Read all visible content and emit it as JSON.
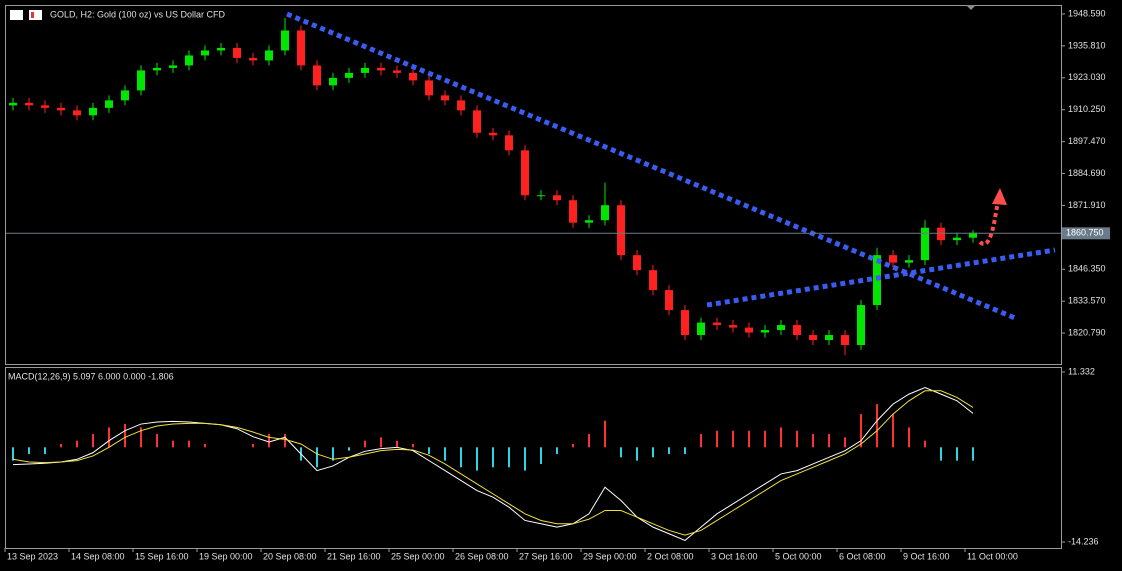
{
  "chart_data": [
    {
      "type": "candlestick",
      "title": "GOLD, H2:  Gold (100 oz) vs US Dollar CFD",
      "categories": [
        "13 Sep 2023",
        null,
        null,
        null,
        "14 Sep 08:00",
        null,
        null,
        null,
        "15 Sep 16:00",
        null,
        null,
        null,
        "19 Sep 00:00",
        null,
        null,
        null,
        "20 Sep 08:00",
        null,
        null,
        null,
        "21 Sep 16:00",
        null,
        null,
        null,
        "25 Sep 00:00",
        null,
        null,
        null,
        "26 Sep 08:00",
        null,
        null,
        null,
        "27 Sep 16:00",
        null,
        null,
        null,
        "29 Sep 00:00",
        null,
        null,
        null,
        "2 Oct 08:00",
        null,
        null,
        null,
        "3 Oct 16:00",
        null,
        null,
        null,
        "5 Oct 00:00",
        null,
        null,
        null,
        "6 Oct 08:00",
        null,
        null,
        null,
        "9 Oct 16:00",
        null,
        null,
        null,
        "11 Oct 00:00"
      ],
      "open": [
        1912,
        1913,
        1912,
        1911,
        1910,
        1908,
        1911,
        1914,
        1918,
        1926,
        1927,
        1928,
        1932,
        1934,
        1935,
        1931,
        1930,
        1934,
        1942,
        1928,
        1920,
        1923,
        1925,
        1927,
        1926,
        1925,
        1922,
        1916,
        1914,
        1910,
        1901,
        1900,
        1894,
        1876,
        1876,
        1874,
        1865,
        1866,
        1872,
        1852,
        1846,
        1838,
        1830,
        1820,
        1825,
        1824,
        1823,
        1821,
        1822,
        1824,
        1820,
        1818,
        1820,
        1816,
        1832,
        1852,
        1849,
        1850,
        1863,
        1858,
        1859
      ],
      "high": [
        1915,
        1915,
        1914,
        1913,
        1912,
        1913,
        1916,
        1920,
        1928,
        1929,
        1930,
        1934,
        1936,
        1937,
        1937,
        1933,
        1936,
        1947,
        1944,
        1930,
        1925,
        1927,
        1929,
        1929,
        1928,
        1927,
        1924,
        1918,
        1916,
        1912,
        1903,
        1902,
        1896,
        1878,
        1878,
        1876,
        1868,
        1881,
        1874,
        1854,
        1848,
        1840,
        1832,
        1827,
        1827,
        1826,
        1825,
        1824,
        1826,
        1826,
        1822,
        1822,
        1822,
        1834,
        1855,
        1854,
        1852,
        1866,
        1865,
        1861,
        1862
      ],
      "low": [
        1910,
        1910,
        1909,
        1908,
        1906,
        1906,
        1909,
        1912,
        1916,
        1924,
        1925,
        1926,
        1930,
        1932,
        1929,
        1928,
        1928,
        1932,
        1926,
        1918,
        1918,
        1921,
        1923,
        1924,
        1923,
        1920,
        1914,
        1912,
        1908,
        1899,
        1898,
        1892,
        1874,
        1874,
        1872,
        1863,
        1863,
        1864,
        1850,
        1844,
        1836,
        1828,
        1818,
        1818,
        1822,
        1821,
        1819,
        1819,
        1820,
        1818,
        1816,
        1816,
        1812,
        1814,
        1830,
        1847,
        1847,
        1848,
        1856,
        1856,
        1857
      ],
      "close": [
        1913,
        1912,
        1911,
        1910,
        1908,
        1911,
        1914,
        1918,
        1926,
        1927,
        1928,
        1932,
        1934,
        1935,
        1931,
        1930,
        1934,
        1942,
        1928,
        1920,
        1923,
        1925,
        1927,
        1926,
        1925,
        1922,
        1916,
        1914,
        1910,
        1901,
        1900,
        1894,
        1876,
        1876,
        1874,
        1865,
        1866,
        1872,
        1852,
        1846,
        1838,
        1830,
        1820,
        1825,
        1824,
        1823,
        1821,
        1822,
        1824,
        1820,
        1818,
        1820,
        1816,
        1832,
        1852,
        1849,
        1850,
        1863,
        1858,
        1859,
        1861
      ],
      "up_color": "#00e600",
      "down_color": "#ff2020",
      "ylim": [
        1808.4,
        1952.2
      ],
      "yticks": [
        {
          "value": 1948.59,
          "label": "1948.590"
        },
        {
          "value": 1935.81,
          "label": "1935.810"
        },
        {
          "value": 1923.03,
          "label": "1923.030"
        },
        {
          "value": 1910.25,
          "label": "1910.250"
        },
        {
          "value": 1897.47,
          "label": "1897.470"
        },
        {
          "value": 1884.69,
          "label": "1884.690"
        },
        {
          "value": 1871.91,
          "label": "1871.910"
        },
        {
          "value": 1846.35,
          "label": "1846.350"
        },
        {
          "value": 1833.57,
          "label": "1833.570"
        },
        {
          "value": 1820.79,
          "label": "1820.790"
        }
      ],
      "last_price": {
        "value": 1860.75,
        "label": "1860.750"
      }
    },
    {
      "type": "macd",
      "title": "MACD(12,26,9) 5.097 6.000 0.000 -1.806",
      "ylim": [
        -15.14,
        12.08
      ],
      "yticks": [
        11.332,
        -14.236
      ],
      "series": [
        {
          "type": "bar",
          "positive_color": "#ff3030",
          "negative_color": "#2ed3e6",
          "values": [
            -2,
            -1,
            -1,
            0.5,
            1,
            2,
            3,
            3.5,
            3,
            2,
            1,
            1,
            0.5,
            0,
            0,
            0.5,
            2,
            2,
            -2,
            -3,
            -2,
            -0.5,
            1,
            1.5,
            1,
            0.5,
            -1,
            -2,
            -3,
            -3.5,
            -3,
            -3,
            -3.5,
            -2.5,
            -1,
            0.5,
            2,
            4,
            -1.5,
            -2,
            -1.5,
            -1,
            -1,
            2,
            2.5,
            2.5,
            2.5,
            2.5,
            3,
            2.5,
            2,
            2,
            1.5,
            5,
            6.5,
            5,
            3,
            1,
            -2,
            -2,
            -2
          ]
        },
        {
          "type": "line",
          "color": "#ffffff",
          "values": [
            -2.6,
            -2.5,
            -2.4,
            -2.2,
            -1.8,
            -0.8,
            1,
            2.5,
            3.5,
            3.8,
            3.9,
            3.8,
            3.6,
            3.4,
            2.8,
            1.6,
            0.8,
            1.5,
            -1,
            -3.5,
            -2.8,
            -1.5,
            -0.6,
            -0.2,
            0,
            -0.5,
            -2,
            -3.5,
            -5,
            -6.5,
            -7.5,
            -9,
            -11,
            -11.5,
            -12,
            -11.5,
            -10,
            -6,
            -8,
            -10.5,
            -12,
            -13,
            -14,
            -12,
            -10,
            -8.5,
            -7,
            -5.5,
            -4,
            -3.5,
            -2.5,
            -1.5,
            -0.5,
            1,
            4,
            6.5,
            8,
            9,
            8,
            7,
            5.1
          ]
        },
        {
          "type": "line",
          "color": "#f0e040",
          "values": [
            -1.8,
            -2.2,
            -2.3,
            -2.2,
            -2,
            -1.3,
            0,
            1.5,
            2.5,
            3.2,
            3.5,
            3.6,
            3.6,
            3.4,
            3,
            2.3,
            1.5,
            1.2,
            0.5,
            -1,
            -1.8,
            -1.5,
            -1,
            -0.5,
            -0.3,
            -0.4,
            -1.2,
            -2.5,
            -4,
            -5.5,
            -7,
            -8.5,
            -10,
            -11,
            -11.5,
            -11.5,
            -10.8,
            -9.5,
            -9.5,
            -10.5,
            -11.5,
            -12.5,
            -13.2,
            -12.5,
            -11,
            -9.5,
            -8,
            -6.5,
            -5,
            -4,
            -3,
            -2,
            -1,
            0.5,
            2.5,
            5,
            7,
            8.5,
            8.5,
            7.5,
            6
          ]
        }
      ]
    }
  ]
}
